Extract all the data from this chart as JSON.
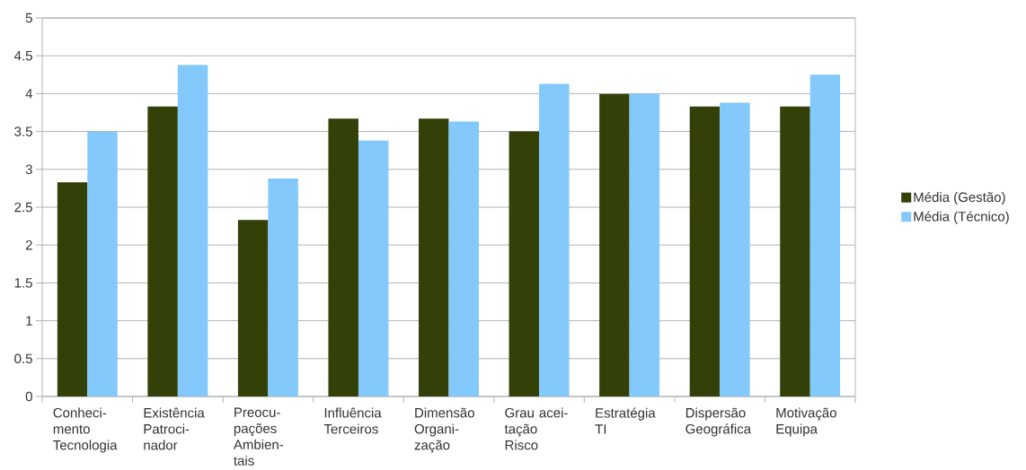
{
  "chart_data": {
    "type": "bar",
    "categories": [
      "Conheci-mento Tecnologia",
      "Existência Patroci-nador",
      "Preocu-pações Ambien-tais",
      "Influência Terceiros",
      "Dimensão Organi-zação",
      "Grau acei-tação Risco",
      "Estratégia TI",
      "Dispersão Geográfica",
      "Motivação Equipa"
    ],
    "series": [
      {
        "name": "Média (Gestão)",
        "color": "#334008",
        "values": [
          2.83,
          3.83,
          2.33,
          3.67,
          3.67,
          3.5,
          4.0,
          3.83,
          3.83
        ]
      },
      {
        "name": "Média (Técnico)",
        "color": "#83c9fc",
        "values": [
          3.5,
          4.38,
          2.88,
          3.38,
          3.63,
          4.13,
          4.0,
          3.88,
          4.25
        ]
      }
    ],
    "ylim": [
      0,
      5
    ],
    "yticks": [
      0,
      0.5,
      1,
      1.5,
      2,
      2.5,
      3,
      3.5,
      4,
      4.5,
      5
    ],
    "grid": "y",
    "legend": "right"
  }
}
